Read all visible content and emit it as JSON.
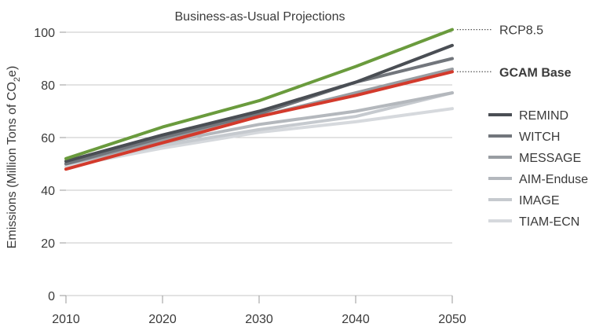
{
  "chart_data": {
    "type": "line",
    "title": "Business-as-Usual Projections",
    "xlabel": "",
    "ylabel": "Emissions (Million Tons of CO2e)",
    "ylabel_parts": {
      "pre": "Emissions (Million Tons of CO",
      "sub": "2",
      "post": "e)"
    },
    "x": [
      2010,
      2020,
      2030,
      2040,
      2050
    ],
    "xticks": [
      "2010",
      "2020",
      "2030",
      "2040",
      "2050"
    ],
    "yticks": [
      "0",
      "20",
      "40",
      "60",
      "80",
      "100"
    ],
    "xlim": [
      2010,
      2050
    ],
    "ylim": [
      0,
      100
    ],
    "grid": true,
    "legend_position": "right",
    "series": [
      {
        "name": "RCP8.5",
        "color": "#6a9b3d",
        "values": [
          52,
          64,
          74,
          87,
          101
        ],
        "label_style": "callout"
      },
      {
        "name": "GCAM Base",
        "color": "#d33a2c",
        "values": [
          48,
          58,
          68,
          76,
          85
        ],
        "label_style": "callout-bold"
      },
      {
        "name": "REMIND",
        "color": "#4a4e54",
        "values": [
          51,
          61,
          70,
          81,
          95
        ],
        "label_style": "legend"
      },
      {
        "name": "WITCH",
        "color": "#72767c",
        "values": [
          50,
          60,
          69,
          81,
          90
        ],
        "label_style": "legend"
      },
      {
        "name": "MESSAGE",
        "color": "#999da2",
        "values": [
          50,
          59,
          68,
          77,
          86
        ],
        "label_style": "legend"
      },
      {
        "name": "AIM-Enduse",
        "color": "#b4b8bd",
        "values": [
          50,
          58,
          65,
          70,
          77
        ],
        "label_style": "legend"
      },
      {
        "name": "IMAGE",
        "color": "#c6cacf",
        "values": [
          50,
          57,
          63,
          68,
          77
        ],
        "label_style": "legend"
      },
      {
        "name": "TIAM-ECN",
        "color": "#d6d9dd",
        "values": [
          49,
          56,
          62,
          66,
          71
        ],
        "label_style": "legend"
      }
    ]
  }
}
